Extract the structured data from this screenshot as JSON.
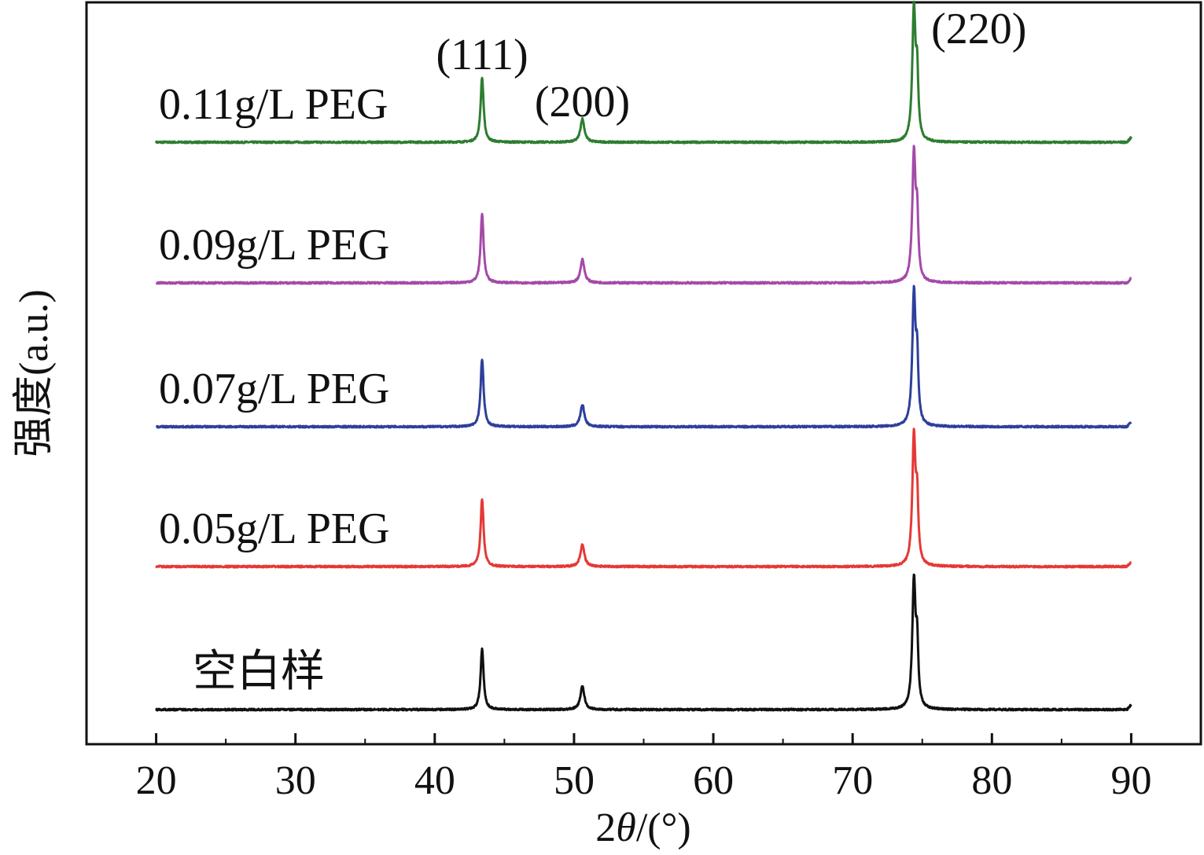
{
  "chart_data": {
    "type": "line",
    "xlabel": "2θ/(°)",
    "xlabel_parts": {
      "prefix": "2",
      "theta": "θ",
      "suffix": "/(°)"
    },
    "ylabel": "强度(a.u.)",
    "xlim": [
      15,
      95
    ],
    "xticks": [
      20,
      30,
      40,
      50,
      60,
      70,
      80,
      90
    ],
    "x_range": [
      20,
      90
    ],
    "peak_labels": [
      {
        "text": "(111)",
        "x": 43.4
      },
      {
        "text": "(200)",
        "x": 50.6
      },
      {
        "text": "(220)",
        "x": 74.4
      }
    ],
    "series": [
      {
        "name": "0.11g/L PEG",
        "color": "#2e7d32",
        "baseline": 5,
        "peaks": [
          43.4,
          50.6,
          74.4
        ],
        "heights": [
          0.47,
          0.17,
          0.95
        ]
      },
      {
        "name": "0.09g/L PEG",
        "color": "#a44aa8",
        "baseline": 4,
        "peaks": [
          43.4,
          50.6,
          74.4
        ],
        "heights": [
          0.5,
          0.17,
          0.93
        ]
      },
      {
        "name": "0.07g/L PEG",
        "color": "#2e3f9b",
        "baseline": 3,
        "peaks": [
          43.4,
          50.6,
          74.4
        ],
        "heights": [
          0.49,
          0.16,
          0.95
        ]
      },
      {
        "name": "0.05g/L PEG",
        "color": "#e53935",
        "baseline": 2,
        "peaks": [
          43.4,
          50.6,
          74.4
        ],
        "heights": [
          0.49,
          0.16,
          0.93
        ]
      },
      {
        "name": "空白样",
        "color": "#111111",
        "baseline": 1,
        "peaks": [
          43.4,
          50.6,
          74.4
        ],
        "heights": [
          0.44,
          0.17,
          0.92
        ]
      }
    ]
  }
}
